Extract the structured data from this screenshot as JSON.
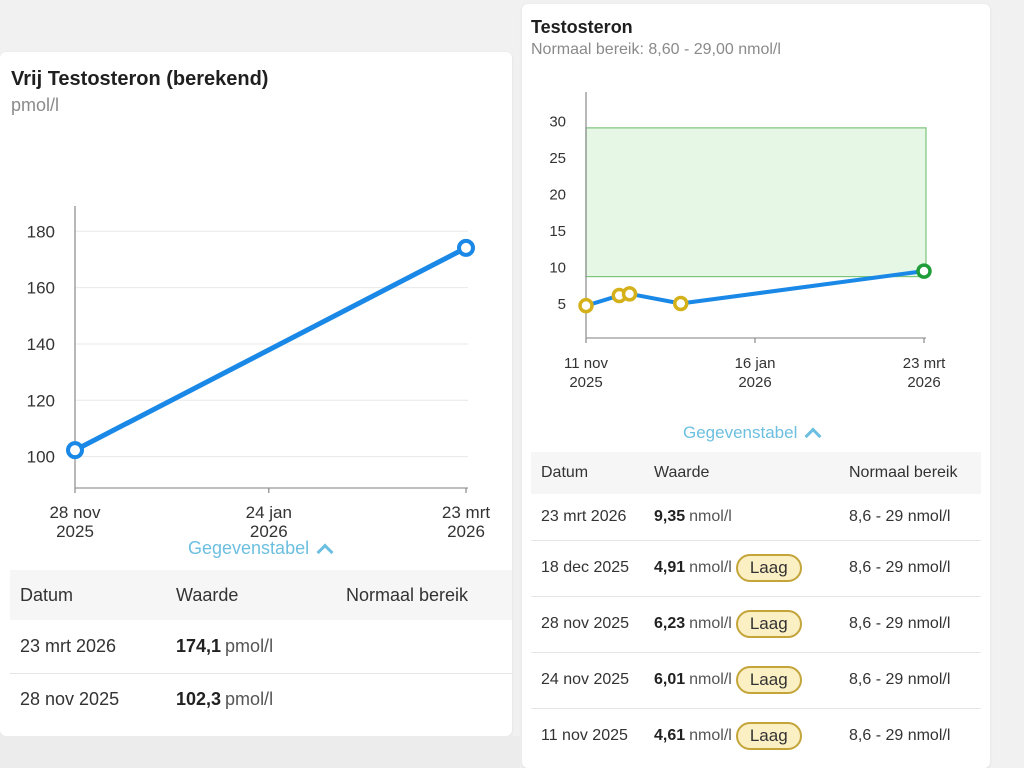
{
  "left_card": {
    "title": "Vrij Testosteron (berekend)",
    "subtitle": "pmol/l",
    "toggle_label": "Gegevenstabel",
    "table": {
      "headers": [
        "Datum",
        "Waarde",
        "Normaal bereik"
      ],
      "rows": [
        {
          "date": "23 mrt 2026",
          "value": "174,1",
          "unit": "pmol/l",
          "range": ""
        },
        {
          "date": "28 nov 2025",
          "value": "102,3",
          "unit": "pmol/l",
          "range": ""
        }
      ]
    }
  },
  "right_card": {
    "title": "Testosteron",
    "subtitle": "Normaal bereik: 8,60 - 29,00 nmol/l",
    "toggle_label": "Gegevenstabel",
    "table": {
      "headers": [
        "Datum",
        "Waarde",
        "Normaal bereik"
      ],
      "rows": [
        {
          "date": "23 mrt 2026",
          "value": "9,35",
          "unit": "nmol/l",
          "badge": "",
          "range": "8,6 - 29 nmol/l"
        },
        {
          "date": "18 dec 2025",
          "value": "4,91",
          "unit": "nmol/l",
          "badge": "Laag",
          "range": "8,6 - 29 nmol/l"
        },
        {
          "date": "28 nov 2025",
          "value": "6,23",
          "unit": "nmol/l",
          "badge": "Laag",
          "range": "8,6 - 29 nmol/l"
        },
        {
          "date": "24 nov 2025",
          "value": "6,01",
          "unit": "nmol/l",
          "badge": "Laag",
          "range": "8,6 - 29 nmol/l"
        },
        {
          "date": "11 nov 2025",
          "value": "4,61",
          "unit": "nmol/l",
          "badge": "Laag",
          "range": "8,6 - 29 nmol/l"
        }
      ]
    }
  },
  "colors": {
    "line": "#1a88e6",
    "low_marker": "#d4b11a",
    "normal_marker": "#1f9e3a",
    "normal_band_fill": "#e6f7e6",
    "normal_band_stroke": "#7cc47c",
    "toggle": "#6cbfe0"
  },
  "chart_data": [
    {
      "type": "line",
      "title": "Vrij Testosteron (berekend)",
      "ylabel": "pmol/l",
      "xlabel": "",
      "ylim": [
        91,
        184
      ],
      "yticks": [
        100,
        120,
        140,
        160,
        180
      ],
      "xlim_days": [
        0,
        115
      ],
      "xticks": [
        {
          "day": 0,
          "line1": "28 nov",
          "line2": "2025"
        },
        {
          "day": 57,
          "line1": "24 jan",
          "line2": "2026"
        },
        {
          "day": 115,
          "line1": "23 mrt",
          "line2": "2026"
        }
      ],
      "grid": true,
      "series": [
        {
          "name": "Vrij Testosteron",
          "points": [
            {
              "day": 0,
              "label": "28 nov 2025",
              "value": 102.3,
              "status": "none"
            },
            {
              "day": 115,
              "label": "23 mrt 2026",
              "value": 174.1,
              "status": "none"
            }
          ]
        }
      ]
    },
    {
      "type": "line",
      "title": "Testosteron",
      "ylabel": "nmol/l",
      "xlabel": "",
      "ylim": [
        1,
        32
      ],
      "yticks": [
        5,
        10,
        15,
        20,
        25,
        30
      ],
      "xlim_days": [
        0,
        132
      ],
      "xticks": [
        {
          "day": 0,
          "line1": "11 nov",
          "line2": "2025"
        },
        {
          "day": 66,
          "line1": "16 jan",
          "line2": "2026"
        },
        {
          "day": 132,
          "line1": "23 mrt",
          "line2": "2026"
        }
      ],
      "grid": false,
      "normal_range": [
        8.6,
        29
      ],
      "series": [
        {
          "name": "Testosteron",
          "points": [
            {
              "day": 0,
              "label": "11 nov 2025",
              "value": 4.61,
              "status": "low"
            },
            {
              "day": 13,
              "label": "24 nov 2025",
              "value": 6.01,
              "status": "low"
            },
            {
              "day": 17,
              "label": "28 nov 2025",
              "value": 6.23,
              "status": "low"
            },
            {
              "day": 37,
              "label": "18 dec 2025",
              "value": 4.91,
              "status": "low"
            },
            {
              "day": 132,
              "label": "23 mrt 2026",
              "value": 9.35,
              "status": "normal"
            }
          ]
        }
      ]
    }
  ]
}
